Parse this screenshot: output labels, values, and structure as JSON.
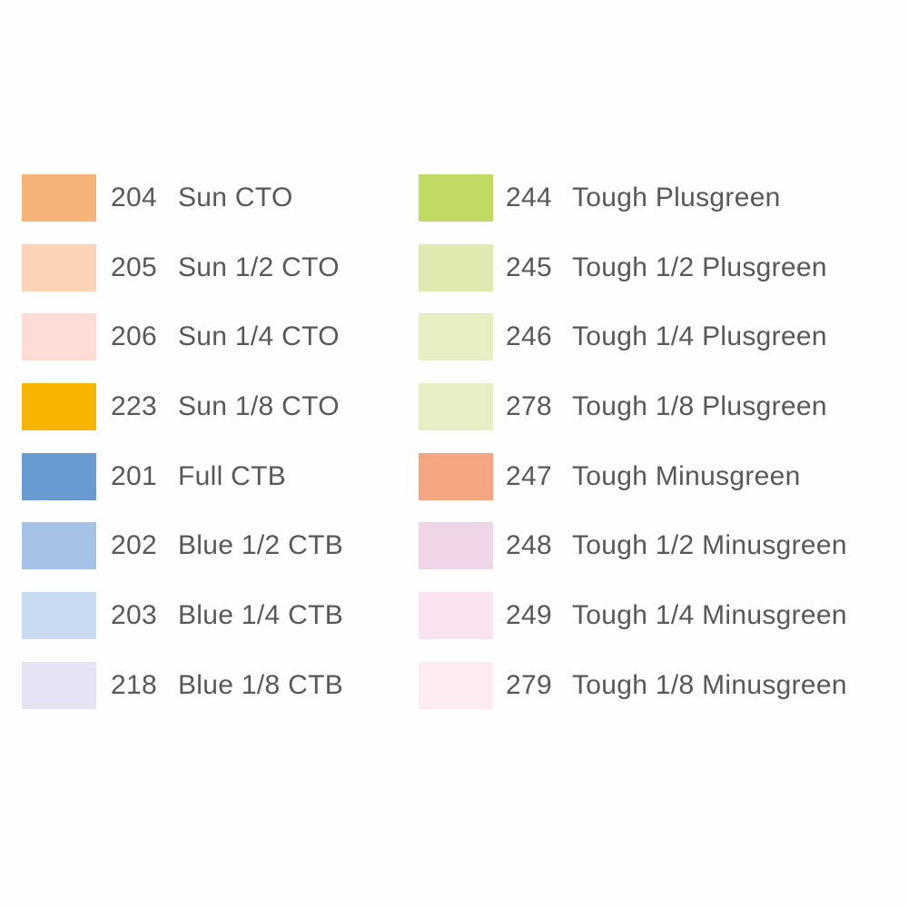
{
  "left_column": [
    {
      "code": "204",
      "name": "Sun CTO",
      "color": "#f6b378"
    },
    {
      "code": "205",
      "name": "Sun 1/2 CTO",
      "color": "#fcd3b7"
    },
    {
      "code": "206",
      "name": "Sun 1/4 CTO",
      "color": "#fcdcd5"
    },
    {
      "code": "223",
      "name": "Sun 1/8 CTO",
      "color": "#f8b500"
    },
    {
      "code": "201",
      "name": "Full CTB",
      "color": "#6a9ad2"
    },
    {
      "code": "202",
      "name": "Blue 1/2 CTB",
      "color": "#a6c3e7"
    },
    {
      "code": "203",
      "name": "Blue 1/4 CTB",
      "color": "#cadbf1"
    },
    {
      "code": "218",
      "name": "Blue 1/8 CTB",
      "color": "#e3e3f3"
    }
  ],
  "right_column": [
    {
      "code": "244",
      "name": "Tough Plusgreen",
      "color": "#c1da62"
    },
    {
      "code": "245",
      "name": "Tough 1/2 Plusgreen",
      "color": "#dfeab0"
    },
    {
      "code": "246",
      "name": "Tough 1/4 Plusgreen",
      "color": "#e5efc1"
    },
    {
      "code": "278",
      "name": "Tough 1/8 Plusgreen",
      "color": "#e5efc3"
    },
    {
      "code": "247",
      "name": "Tough Minusgreen",
      "color": "#f4a680"
    },
    {
      "code": "248",
      "name": "Tough 1/2 Minusgreen",
      "color": "#efd5e7"
    },
    {
      "code": "249",
      "name": "Tough 1/4 Minusgreen",
      "color": "#f9e3f0"
    },
    {
      "code": "279",
      "name": "Tough 1/8 Minusgreen",
      "color": "#fdebf3"
    }
  ]
}
